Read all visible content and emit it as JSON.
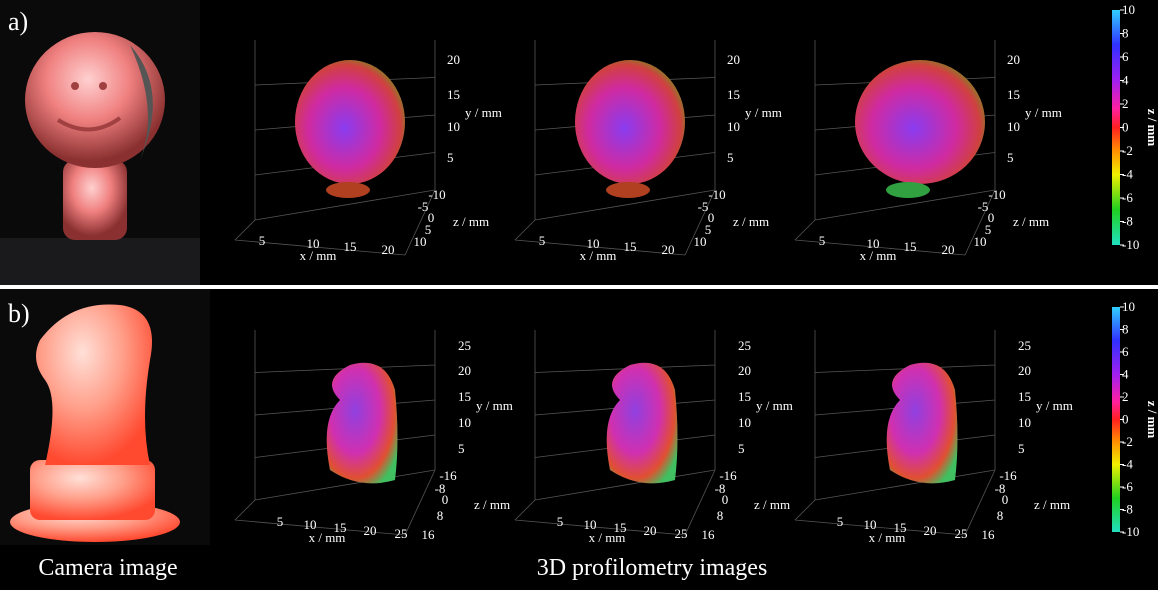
{
  "panels": [
    {
      "label": "a)",
      "plot_axes": {
        "x_label": "x / mm",
        "y_label": "y / mm",
        "z_label": "z / mm",
        "x_ticks": [
          5,
          10,
          15,
          20
        ],
        "y_ticks": [
          20,
          15,
          10,
          5
        ],
        "z_ticks": [
          -10,
          -5,
          0,
          5,
          10
        ]
      },
      "colorbar": {
        "label": "z / mm",
        "ticks": [
          10,
          8,
          6,
          4,
          2,
          0,
          -2,
          -4,
          -6,
          -8,
          -10
        ]
      }
    },
    {
      "label": "b)",
      "plot_axes": {
        "x_label": "x / mm",
        "y_label": "y / mm",
        "z_label": "z / mm",
        "x_ticks": [
          5,
          10,
          15,
          20,
          25
        ],
        "y_ticks": [
          25,
          20,
          15,
          10,
          5
        ],
        "z_ticks": [
          -16,
          -8,
          0,
          8,
          16
        ]
      },
      "colorbar": {
        "label": "z / mm",
        "ticks": [
          10,
          8,
          6,
          4,
          2,
          0,
          -2,
          -4,
          -6,
          -8,
          -10
        ]
      }
    }
  ],
  "captions": {
    "camera": "Camera image",
    "profilometry": "3D profilometry images"
  }
}
